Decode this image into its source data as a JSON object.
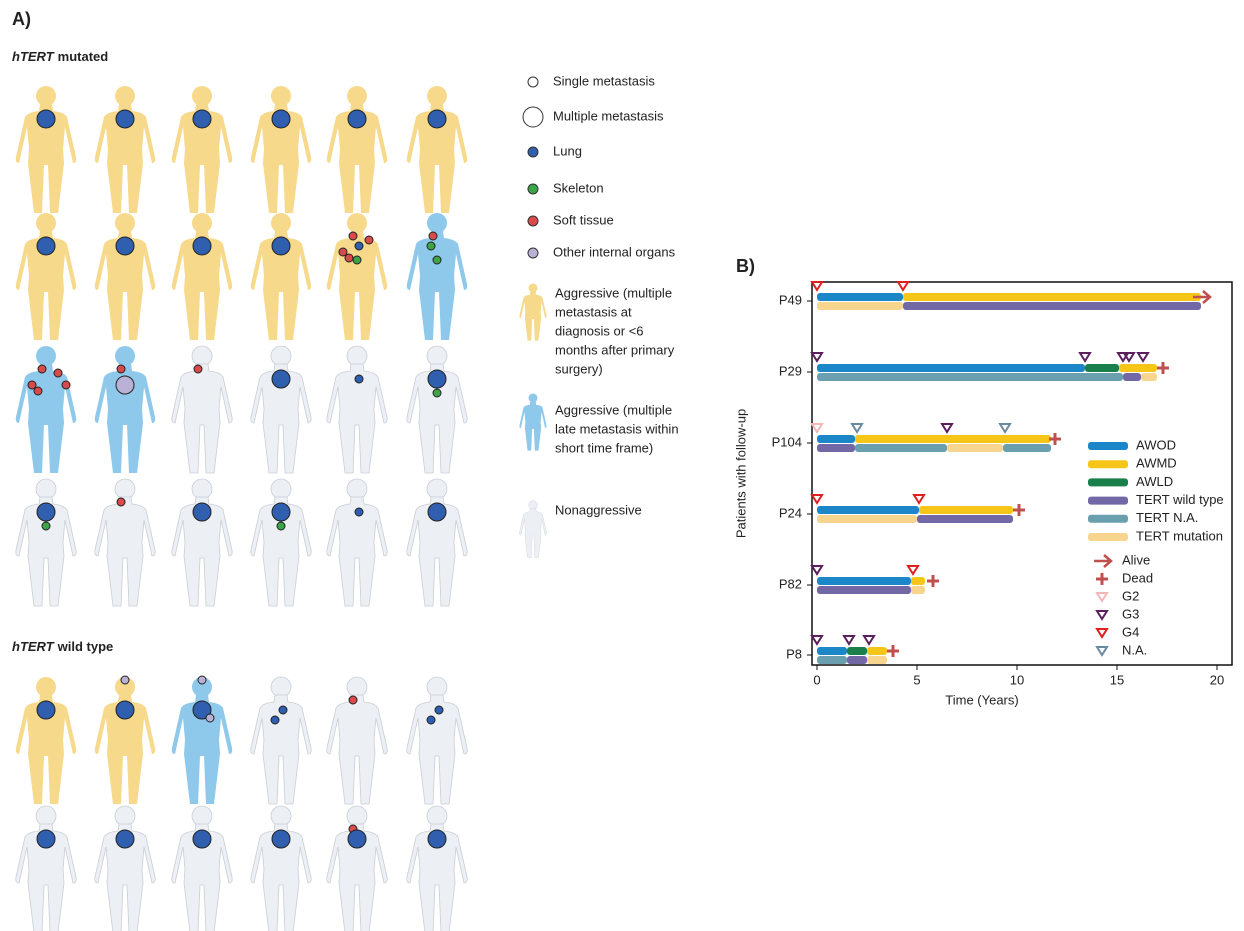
{
  "panel_a": {
    "title": "A)",
    "groups": [
      {
        "italic": "hTERT",
        "text": "mutated",
        "rows": [
          [
            {
              "class": 0,
              "sites": [
                [
                  2,
                  1
                ]
              ]
            },
            {
              "class": 0,
              "sites": [
                [
                  2,
                  1
                ]
              ]
            },
            {
              "class": 0,
              "sites": [
                [
                  2,
                  1
                ]
              ]
            },
            {
              "class": 0,
              "sites": [
                [
                  2,
                  1
                ]
              ]
            },
            {
              "class": 0,
              "sites": [
                [
                  2,
                  1
                ]
              ]
            },
            {
              "class": 0,
              "sites": [
                [
                  2,
                  1
                ]
              ]
            }
          ],
          [
            {
              "class": 0,
              "sites": [
                [
                  2,
                  1
                ]
              ]
            },
            {
              "class": 0,
              "sites": [
                [
                  2,
                  1
                ]
              ]
            },
            {
              "class": 0,
              "sites": [
                [
                  2,
                  1
                ]
              ]
            },
            {
              "class": 0,
              "sites": [
                [
                  2,
                  1
                ]
              ]
            },
            {
              "class": 0,
              "sites": [
                [
                  3,
                  0
                ],
                [
                  4,
                  0
                ],
                [
                  4,
                  0
                ],
                [
                  4,
                  0
                ],
                [
                  4,
                  0
                ],
                [
                  2,
                  0
                ]
              ]
            },
            {
              "class": 1,
              "sites": [
                [
                  3,
                  0
                ],
                [
                  4,
                  0
                ],
                [
                  3,
                  0
                ]
              ]
            }
          ],
          [
            {
              "class": 1,
              "sites": [
                [
                  4,
                  0
                ],
                [
                  4,
                  0
                ],
                [
                  4,
                  0
                ],
                [
                  4,
                  0
                ],
                [
                  4,
                  0
                ]
              ]
            },
            {
              "class": 1,
              "sites": [
                [
                  4,
                  0
                ],
                [
                  5,
                  1
                ]
              ]
            },
            {
              "class": 2,
              "sites": [
                [
                  4,
                  0
                ]
              ]
            },
            {
              "class": 2,
              "sites": [
                [
                  2,
                  1
                ]
              ]
            },
            {
              "class": 2,
              "sites": [
                [
                  2,
                  0
                ]
              ]
            },
            {
              "class": 2,
              "sites": [
                [
                  2,
                  1
                ],
                [
                  3,
                  0
                ]
              ]
            }
          ],
          [
            {
              "class": 2,
              "sites": [
                [
                  2,
                  1
                ],
                [
                  3,
                  0
                ]
              ]
            },
            {
              "class": 2,
              "sites": [
                [
                  4,
                  0
                ]
              ]
            },
            {
              "class": 2,
              "sites": [
                [
                  2,
                  1
                ]
              ]
            },
            {
              "class": 2,
              "sites": [
                [
                  3,
                  0
                ],
                [
                  2,
                  1
                ]
              ]
            },
            {
              "class": 2,
              "sites": [
                [
                  2,
                  0
                ]
              ]
            },
            {
              "class": 2,
              "sites": [
                [
                  2,
                  1
                ]
              ]
            }
          ]
        ]
      },
      {
        "italic": "hTERT",
        "text": "wild type",
        "rows": [
          [
            {
              "class": 0,
              "sites": [
                [
                  2,
                  1
                ]
              ]
            },
            {
              "class": 0,
              "sites": [
                [
                  2,
                  1
                ],
                [
                  5,
                  0
                ]
              ]
            },
            {
              "class": 1,
              "sites": [
                [
                  5,
                  0
                ],
                [
                  2,
                  1
                ],
                [
                  5,
                  0
                ]
              ]
            },
            {
              "class": 2,
              "sites": [
                [
                  2,
                  0
                ],
                [
                  2,
                  0
                ]
              ]
            },
            {
              "class": 2,
              "sites": [
                [
                  4,
                  0
                ]
              ]
            },
            {
              "class": 2,
              "sites": [
                [
                  2,
                  0
                ],
                [
                  2,
                  0
                ]
              ]
            }
          ],
          [
            {
              "class": 2,
              "sites": [
                [
                  2,
                  1
                ]
              ]
            },
            {
              "class": 2,
              "sites": [
                [
                  2,
                  1
                ]
              ]
            },
            {
              "class": 2,
              "sites": [
                [
                  2,
                  1
                ]
              ]
            },
            {
              "class": 2,
              "sites": [
                [
                  2,
                  1
                ]
              ]
            },
            {
              "class": 2,
              "sites": [
                [
                  4,
                  0
                ],
                [
                  2,
                  1
                ]
              ]
            },
            {
              "class": 2,
              "sites": [
                [
                  2,
                  1
                ]
              ]
            }
          ]
        ]
      }
    ],
    "sizes": [
      "Single metastasis",
      "Multiple metastasis"
    ],
    "sites": [
      {
        "name": "Lung",
        "color": "#2f5fae"
      },
      {
        "name": "Skeleton",
        "color": "#3ca548"
      },
      {
        "name": "Soft tissue",
        "color": "#d94a4a"
      },
      {
        "name": "Other internal organs",
        "color": "#b9b2d6"
      }
    ],
    "classes": [
      {
        "lines": [
          "Aggressive (multiple",
          "metastasis at",
          "diagnosis or <6",
          "months after primary",
          "surgery)"
        ],
        "color": "#f7d98b"
      },
      {
        "lines": [
          "Aggressive (multiple",
          "late metastasis within",
          "short time frame)"
        ],
        "color": "#8ec9ec"
      },
      {
        "lines": [
          "Nonaggressive"
        ],
        "color": "#eceff3"
      }
    ]
  },
  "chart_data": {
    "type": "swimmer",
    "title": "B)",
    "xlabel": "Time (Years)",
    "ylabel": "Patients with follow-up",
    "xlim": [
      -0.25,
      20.75
    ],
    "xticks": [
      0,
      5,
      10,
      15,
      20
    ],
    "legend_status": [
      {
        "name": "AWOD",
        "color": "#1b86c8"
      },
      {
        "name": "AWMD",
        "color": "#f5c518"
      },
      {
        "name": "AWLD",
        "color": "#1a7f4a"
      }
    ],
    "legend_tert": [
      {
        "name": "TERT wild type",
        "color": "#7268a6"
      },
      {
        "name": "TERT N.A.",
        "color": "#6a9fb0"
      },
      {
        "name": "TERT mutation",
        "color": "#f7d58f"
      }
    ],
    "legend_outcome": [
      {
        "name": "Alive",
        "color": "#c0504d"
      },
      {
        "name": "Dead",
        "color": "#c0504d"
      }
    ],
    "legend_grade": [
      {
        "name": "G2",
        "color": "#f4b6b6"
      },
      {
        "name": "G3",
        "color": "#5b1f5e"
      },
      {
        "name": "G4",
        "color": "#e02020"
      },
      {
        "name": "N.A.",
        "color": "#6a8aa0"
      }
    ],
    "patients": [
      {
        "name": "P49",
        "status": [
          {
            "state": "AWOD",
            "duration": 4.3
          },
          {
            "state": "AWMD",
            "duration": 14.9
          }
        ],
        "tert": [
          {
            "state": "TERT mutation",
            "duration": 4.3
          },
          {
            "state": "TERT wild type",
            "duration": 14.9
          }
        ],
        "outcome": "Alive",
        "outcome_at": 19.2,
        "grades": [
          {
            "grade": "G4",
            "t": 0
          },
          {
            "grade": "G4",
            "t": 4.3
          }
        ]
      },
      {
        "name": "P29",
        "status": [
          {
            "state": "AWOD",
            "duration": 13.4
          },
          {
            "state": "AWLD",
            "duration": 1.7
          },
          {
            "state": "AWMD",
            "duration": 1.9
          }
        ],
        "tert": [
          {
            "state": "TERT N.A.",
            "duration": 15.3
          },
          {
            "state": "TERT wild type",
            "duration": 0.9
          },
          {
            "state": "TERT mutation",
            "duration": 0.8
          }
        ],
        "outcome": "Dead",
        "outcome_at": 17.3,
        "grades": [
          {
            "grade": "G3",
            "t": 0
          },
          {
            "grade": "G3",
            "t": 13.4
          },
          {
            "grade": "G3",
            "t": 15.3
          },
          {
            "grade": "G3",
            "t": 15.6
          },
          {
            "grade": "G3",
            "t": 16.3
          }
        ]
      },
      {
        "name": "P104",
        "status": [
          {
            "state": "AWOD",
            "duration": 1.9
          },
          {
            "state": "AWMD",
            "duration": 9.8
          }
        ],
        "tert": [
          {
            "state": "TERT wild type",
            "duration": 1.9
          },
          {
            "state": "TERT N.A.",
            "duration": 4.6
          },
          {
            "state": "TERT mutation",
            "duration": 2.8
          },
          {
            "state": "TERT N.A.",
            "duration": 2.4
          }
        ],
        "outcome": "Dead",
        "outcome_at": 11.9,
        "grades": [
          {
            "grade": "G2",
            "t": 0
          },
          {
            "grade": "N.A.",
            "t": 2
          },
          {
            "grade": "G3",
            "t": 6.5
          },
          {
            "grade": "N.A.",
            "t": 9.4
          }
        ]
      },
      {
        "name": "P24",
        "status": [
          {
            "state": "AWOD",
            "duration": 5.1
          },
          {
            "state": "AWMD",
            "duration": 4.7
          }
        ],
        "tert": [
          {
            "state": "TERT mutation",
            "duration": 5
          },
          {
            "state": "TERT wild type",
            "duration": 4.8
          }
        ],
        "outcome": "Dead",
        "outcome_at": 10.1,
        "grades": [
          {
            "grade": "G4",
            "t": 0
          },
          {
            "grade": "G4",
            "t": 5.1
          }
        ]
      },
      {
        "name": "P82",
        "status": [
          {
            "state": "AWOD",
            "duration": 4.7
          },
          {
            "state": "AWMD",
            "duration": 0.7
          }
        ],
        "tert": [
          {
            "state": "TERT wild type",
            "duration": 4.7
          },
          {
            "state": "TERT mutation",
            "duration": 0.7
          }
        ],
        "outcome": "Dead",
        "outcome_at": 5.8,
        "grades": [
          {
            "grade": "G3",
            "t": 0
          },
          {
            "grade": "G4",
            "t": 4.8
          }
        ]
      },
      {
        "name": "P8",
        "status": [
          {
            "state": "AWOD",
            "duration": 1.5
          },
          {
            "state": "AWLD",
            "duration": 1
          },
          {
            "state": "AWMD",
            "duration": 1
          }
        ],
        "tert": [
          {
            "state": "TERT N.A.",
            "duration": 1.5
          },
          {
            "state": "TERT wild type",
            "duration": 1
          },
          {
            "state": "TERT mutation",
            "duration": 1
          }
        ],
        "outcome": "Dead",
        "outcome_at": 3.8,
        "grades": [
          {
            "grade": "G3",
            "t": 0
          },
          {
            "grade": "G3",
            "t": 1.6
          },
          {
            "grade": "G3",
            "t": 2.6
          }
        ]
      }
    ]
  }
}
